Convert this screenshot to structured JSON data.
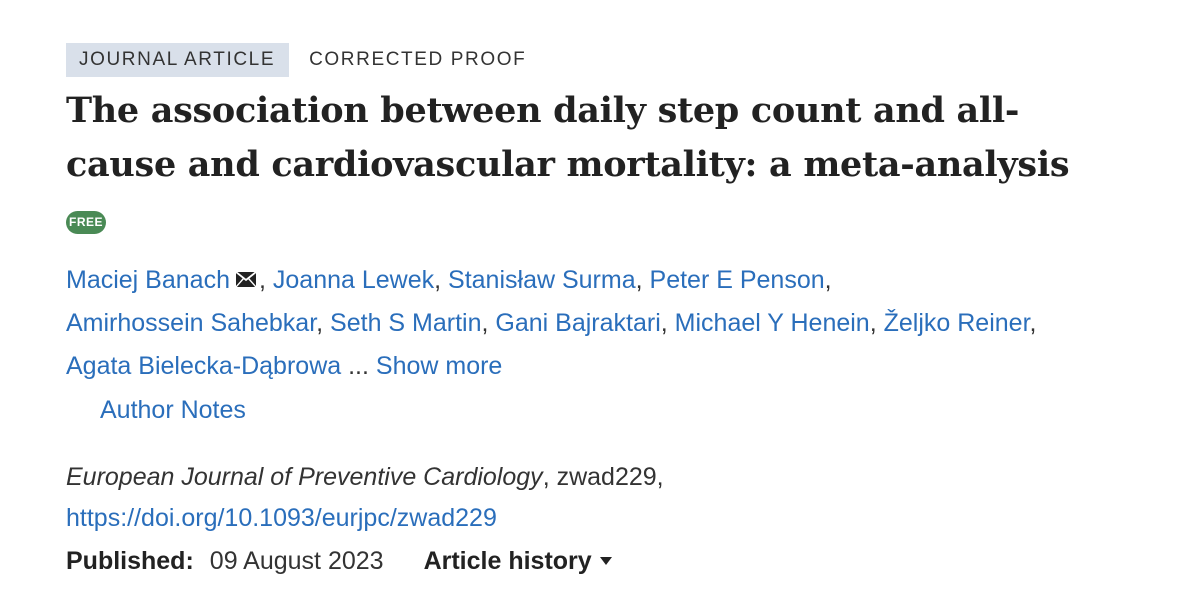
{
  "tags": {
    "type": "JOURNAL ARTICLE",
    "status": "CORRECTED PROOF"
  },
  "title": {
    "line1": "The association between daily step count and all-",
    "line2": "cause and cardiovascular mortality: a meta-analysis"
  },
  "access_badge": "FREE",
  "authors": {
    "names": [
      "Maciej Banach",
      "Joanna Lewek",
      "Stanisław Surma",
      "Peter E Penson",
      "Amirhossein Sahebkar",
      "Seth S Martin",
      "Gani Bajraktari",
      "Michael Y Henein",
      "Željko Reiner",
      "Agata Bielecka-Dąbrowa"
    ],
    "separator": ", ",
    "ellipsis": " ... ",
    "show_more": "Show more",
    "corresponding_icon": "envelope-icon"
  },
  "author_notes": "Author Notes",
  "citation": {
    "journal": "European Journal of Preventive Cardiology",
    "article_id": ", zwad229,",
    "doi": "https://doi.org/10.1093/eurjpc/zwad229"
  },
  "published": {
    "label": "Published:",
    "date": "09 August 2023"
  },
  "article_history": {
    "label": "Article history",
    "icon": "caret-down-icon"
  },
  "colors": {
    "link": "#2a6ebb",
    "tag_background": "#d9e0ea",
    "free_badge": "#4a8a55",
    "text": "#222222"
  }
}
